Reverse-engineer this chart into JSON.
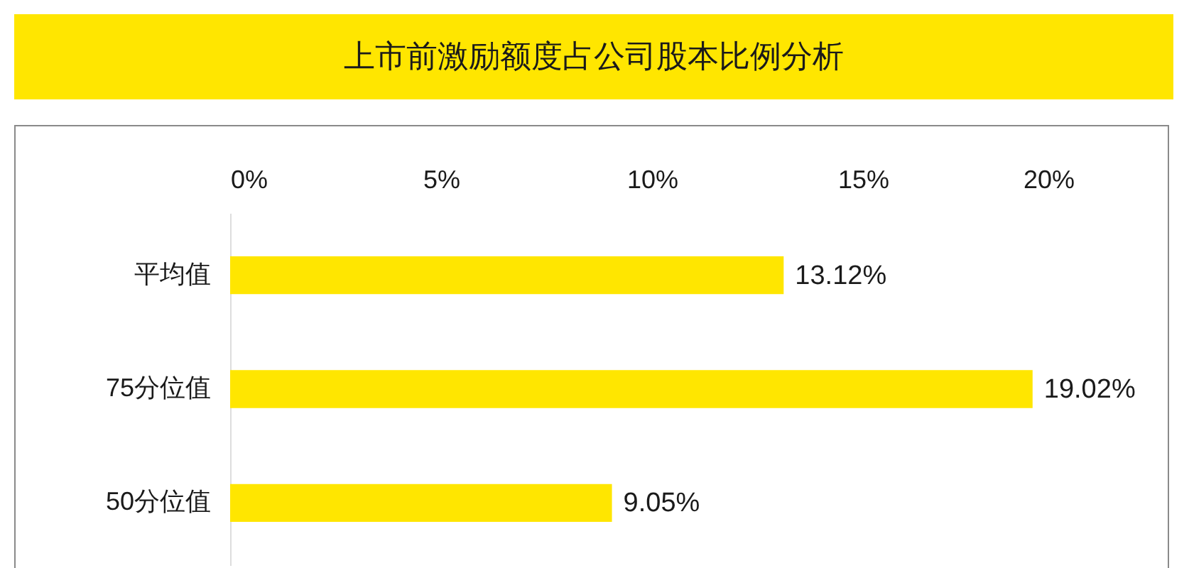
{
  "chart_data": {
    "type": "bar",
    "orientation": "horizontal",
    "title": "上市前激励额度占公司股本比例分析",
    "categories": [
      "平均值",
      "75分位值",
      "50分位值"
    ],
    "values": [
      13.12,
      19.02,
      9.05
    ],
    "value_labels": [
      "13.12%",
      "19.02%",
      "9.05%"
    ],
    "color": "#ffe600",
    "xlim": [
      0,
      20
    ],
    "xticks": [
      {
        "value": 0,
        "label": "0%"
      },
      {
        "value": 5,
        "label": "5%"
      },
      {
        "value": 10,
        "label": "10%"
      },
      {
        "value": 15,
        "label": "15%"
      },
      {
        "value": 20,
        "label": "20%"
      }
    ]
  }
}
